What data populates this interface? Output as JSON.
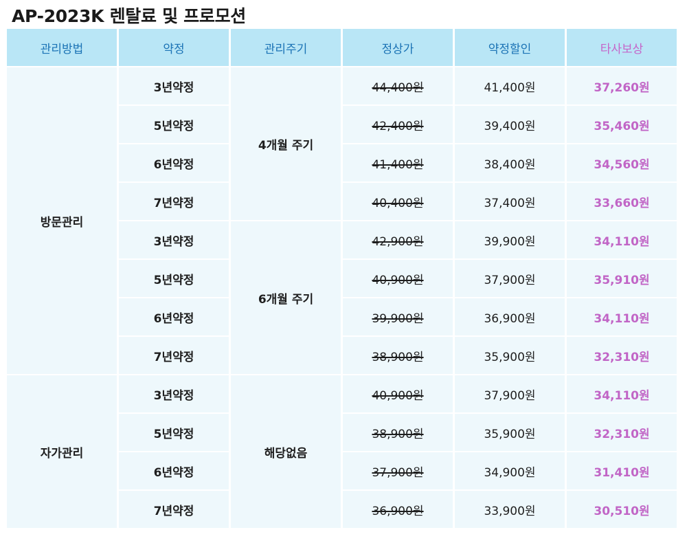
{
  "title": "AP-2023K 렌탈료 및 프로모션",
  "headers": [
    "관리방법",
    "약정",
    "관리주기",
    "정상가",
    "약정할인",
    "타사보상"
  ],
  "groups": [
    {
      "method": "방문관리",
      "cycles": [
        {
          "cycle": "4개월 주기",
          "rows": [
            {
              "contract": "3년약정",
              "original": "44,400원",
              "discount": "41,400원",
              "compensation": "37,260원"
            },
            {
              "contract": "5년약정",
              "original": "42,400원",
              "discount": "39,400원",
              "compensation": "35,460원"
            },
            {
              "contract": "6년약정",
              "original": "41,400원",
              "discount": "38,400원",
              "compensation": "34,560원"
            },
            {
              "contract": "7년약정",
              "original": "40,400원",
              "discount": "37,400원",
              "compensation": "33,660원"
            }
          ]
        },
        {
          "cycle": "6개월 주기",
          "rows": [
            {
              "contract": "3년약정",
              "original": "42,900원",
              "discount": "39,900원",
              "compensation": "34,110원"
            },
            {
              "contract": "5년약정",
              "original": "40,900원",
              "discount": "37,900원",
              "compensation": "35,910원"
            },
            {
              "contract": "6년약정",
              "original": "39,900원",
              "discount": "36,900원",
              "compensation": "34,110원"
            },
            {
              "contract": "7년약정",
              "original": "38,900원",
              "discount": "35,900원",
              "compensation": "32,310원"
            }
          ]
        }
      ]
    },
    {
      "method": "자가관리",
      "cycles": [
        {
          "cycle": "해당없음",
          "rows": [
            {
              "contract": "3년약정",
              "original": "40,900원",
              "discount": "37,900원",
              "compensation": "34,110원"
            },
            {
              "contract": "5년약정",
              "original": "38,900원",
              "discount": "35,900원",
              "compensation": "32,310원"
            },
            {
              "contract": "6년약정",
              "original": "37,900원",
              "discount": "34,900원",
              "compensation": "31,410원"
            },
            {
              "contract": "7년약정",
              "original": "36,900원",
              "discount": "33,900원",
              "compensation": "30,510원"
            }
          ]
        }
      ]
    }
  ],
  "colors": {
    "header_bg": "#b9e6f6",
    "header_text": "#1b73b5",
    "highlight_text": "#c165c6",
    "cell_bg": "#eef8fc"
  }
}
